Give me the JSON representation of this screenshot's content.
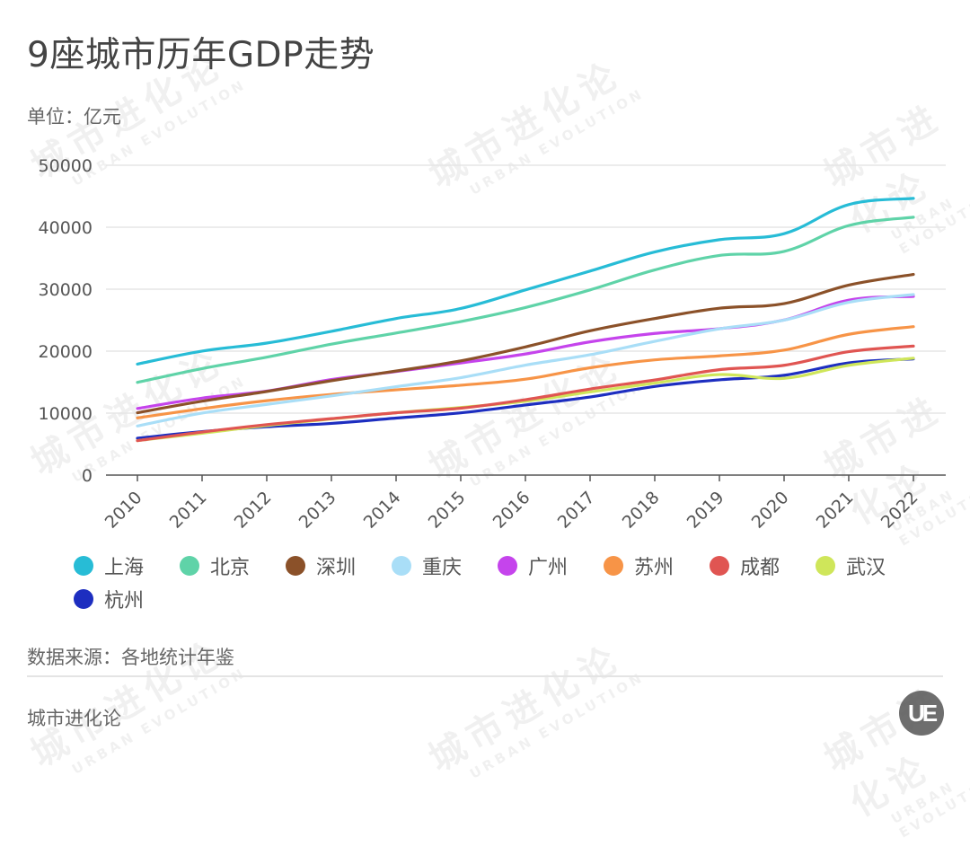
{
  "header": {
    "title": "9座城市历年GDP走势",
    "unit": "单位：亿元"
  },
  "footer": {
    "source": "数据来源：各地统计年鉴",
    "brand": "城市进化论",
    "logo_text": "UE"
  },
  "watermark": {
    "cn": "城市进化论",
    "en": "URBAN EVOLUTION"
  },
  "legend": [
    {
      "name": "上海",
      "color": "#27bcd6"
    },
    {
      "name": "北京",
      "color": "#5fd3a8"
    },
    {
      "name": "深圳",
      "color": "#8b5129"
    },
    {
      "name": "重庆",
      "color": "#a9def7"
    },
    {
      "name": "广州",
      "color": "#c544ec"
    },
    {
      "name": "苏州",
      "color": "#f79447"
    },
    {
      "name": "成都",
      "color": "#e05552"
    },
    {
      "name": "武汉",
      "color": "#cfe65a"
    },
    {
      "name": "杭州",
      "color": "#1d2ec0"
    }
  ],
  "chart_data": {
    "type": "line",
    "title": "9座城市历年GDP走势",
    "xlabel": "",
    "ylabel": "单位：亿元",
    "x": [
      "2010",
      "2011",
      "2012",
      "2013",
      "2014",
      "2015",
      "2016",
      "2017",
      "2018",
      "2019",
      "2020",
      "2021",
      "2022"
    ],
    "ylim": [
      0,
      50000
    ],
    "yticks": [
      0,
      10000,
      20000,
      30000,
      40000,
      50000
    ],
    "grid": true,
    "legend_position": "bottom",
    "smooth": true,
    "series": [
      {
        "name": "上海",
        "color": "#27bcd6",
        "values": [
          17915,
          20010,
          21305,
          23204,
          25269,
          26887,
          29887,
          32925,
          36012,
          37988,
          38963,
          43653,
          44653
        ]
      },
      {
        "name": "北京",
        "color": "#5fd3a8",
        "values": [
          14964,
          17189,
          19025,
          21135,
          22926,
          24779,
          27041,
          29883,
          33106,
          35445,
          36103,
          40270,
          41611
        ]
      },
      {
        "name": "深圳",
        "color": "#8b5129",
        "values": [
          10069,
          11923,
          13497,
          15235,
          16795,
          18436,
          20685,
          23280,
          25266,
          26927,
          27670,
          30665,
          32388
        ]
      },
      {
        "name": "重庆",
        "color": "#a9def7",
        "values": [
          7926,
          10011,
          11410,
          12783,
          14263,
          15720,
          17741,
          19425,
          21589,
          23606,
          25003,
          27894,
          29129
        ]
      },
      {
        "name": "广州",
        "color": "#c544ec",
        "values": [
          10748,
          12423,
          13551,
          15420,
          16707,
          18100,
          19547,
          21503,
          22859,
          23629,
          25019,
          28232,
          28839
        ]
      },
      {
        "name": "苏州",
        "color": "#f79447",
        "values": [
          9229,
          10717,
          12012,
          13016,
          13761,
          14504,
          15475,
          17320,
          18597,
          19236,
          20171,
          22718,
          23958
        ]
      },
      {
        "name": "成都",
        "color": "#e05552",
        "values": [
          5551,
          6950,
          8139,
          9109,
          10057,
          10801,
          12170,
          13890,
          15343,
          17013,
          17717,
          19917,
          20818
        ]
      },
      {
        "name": "武汉",
        "color": "#cfe65a",
        "values": [
          5566,
          6756,
          8004,
          9051,
          10069,
          10906,
          11913,
          13410,
          14847,
          16223,
          15616,
          17717,
          18866
        ]
      },
      {
        "name": "杭州",
        "color": "#1d2ec0",
        "values": [
          5949,
          7012,
          7804,
          8343,
          9206,
          10050,
          11314,
          12603,
          14307,
          15373,
          16106,
          18109,
          18753
        ]
      }
    ]
  }
}
